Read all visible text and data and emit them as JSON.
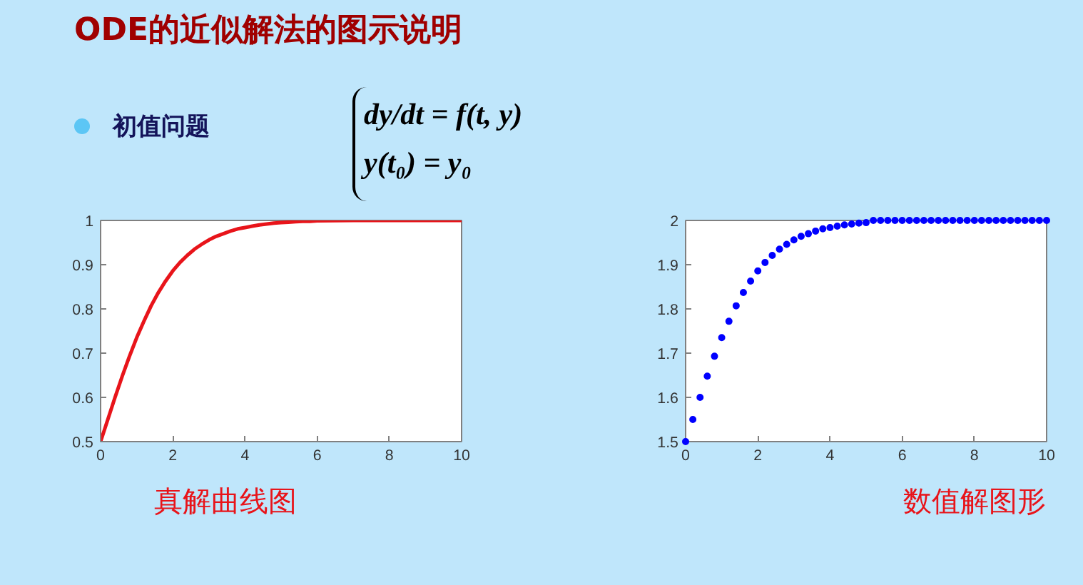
{
  "chart_data": [
    {
      "type": "line",
      "title": "ODE的近似解法的图示说明",
      "annotations": [
        "初值问题",
        "dy/dt = f(t, y)",
        "y(t₀) = y₀",
        "真解曲线图"
      ],
      "x": [
        0,
        0.2,
        0.4,
        0.6,
        0.8,
        1,
        1.2,
        1.4,
        1.6,
        1.8,
        2,
        2.2,
        2.4,
        2.6,
        2.8,
        3,
        3.2,
        3.4,
        3.6,
        3.8,
        4,
        4.2,
        4.4,
        4.6,
        4.8,
        5,
        5.2,
        5.4,
        5.6,
        5.8,
        6,
        7,
        8,
        9,
        10
      ],
      "series": [
        {
          "color": "#e8141a",
          "values": [
            0.5,
            0.55,
            0.6,
            0.648,
            0.693,
            0.735,
            0.772,
            0.807,
            0.837,
            0.863,
            0.886,
            0.905,
            0.921,
            0.935,
            0.946,
            0.956,
            0.964,
            0.97,
            0.976,
            0.981,
            0.984,
            0.987,
            0.99,
            0.992,
            0.994,
            0.995,
            0.996,
            0.997,
            0.998,
            0.998,
            0.999,
            1,
            1,
            1,
            1
          ]
        }
      ],
      "xlim": [
        0,
        10
      ],
      "ylim": [
        0.5,
        1
      ],
      "xticks": [
        0,
        2,
        4,
        6,
        8,
        10
      ],
      "yticks": [
        0.5,
        0.6,
        0.7,
        0.8,
        0.9,
        1
      ],
      "grid": false,
      "marker": "none"
    },
    {
      "type": "scatter",
      "annotations": [
        "数值解图形"
      ],
      "x": [
        0,
        0.2,
        0.4,
        0.6,
        0.8,
        1,
        1.2,
        1.4,
        1.6,
        1.8,
        2,
        2.2,
        2.4,
        2.6,
        2.8,
        3,
        3.2,
        3.4,
        3.6,
        3.8,
        4,
        4.2,
        4.4,
        4.6,
        4.8,
        5,
        5.2,
        5.4,
        5.6,
        5.8,
        6,
        6.2,
        6.4,
        6.6,
        6.8,
        7,
        7.2,
        7.4,
        7.6,
        7.8,
        8,
        8.2,
        8.4,
        8.6,
        8.8,
        9,
        9.2,
        9.4,
        9.6,
        9.8,
        10
      ],
      "series": [
        {
          "color": "#0000ff",
          "values": [
            1.5,
            1.55,
            1.6,
            1.648,
            1.693,
            1.735,
            1.772,
            1.807,
            1.837,
            1.863,
            1.886,
            1.905,
            1.921,
            1.935,
            1.946,
            1.956,
            1.964,
            1.97,
            1.976,
            1.981,
            1.984,
            1.987,
            1.99,
            1.992,
            1.994,
            1.995,
            2,
            2,
            2,
            2,
            2,
            2,
            2,
            2,
            2,
            2,
            2,
            2,
            2,
            2,
            2,
            2,
            2,
            2,
            2,
            2,
            2,
            2,
            2,
            2,
            2
          ]
        }
      ],
      "xlim": [
        0,
        10
      ],
      "ylim": [
        1.5,
        2
      ],
      "xticks": [
        0,
        2,
        4,
        6,
        8,
        10
      ],
      "yticks": [
        1.5,
        1.6,
        1.7,
        1.8,
        1.9,
        2
      ],
      "grid": false,
      "marker": "circle"
    }
  ]
}
